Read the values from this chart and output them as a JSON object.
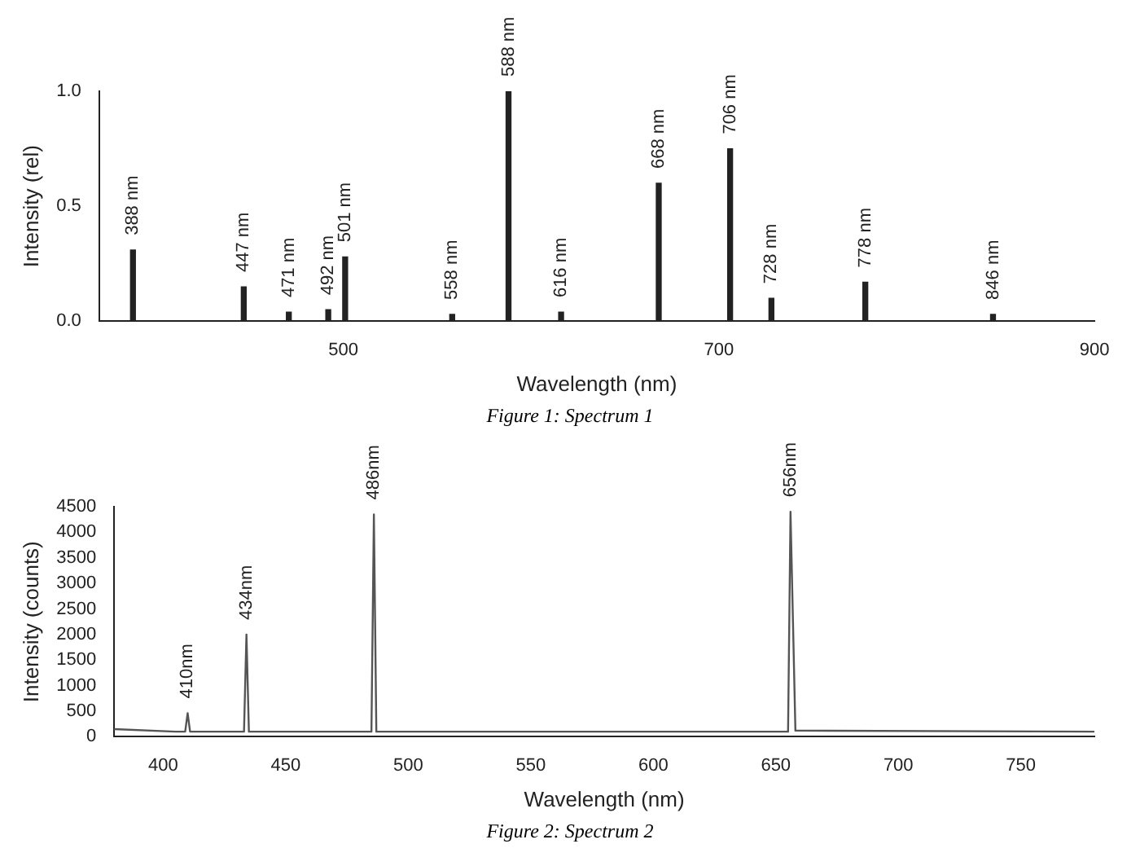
{
  "chart_data": [
    {
      "type": "bar",
      "ylabel": "Intensity (rel)",
      "xlabel": "Wavelength (nm)",
      "x": [
        388,
        447,
        471,
        492,
        501,
        558,
        588,
        616,
        668,
        706,
        728,
        778,
        846
      ],
      "values": [
        0.31,
        0.15,
        0.04,
        0.05,
        0.28,
        0.03,
        1.0,
        0.04,
        0.6,
        0.75,
        0.1,
        0.17,
        0.03
      ],
      "color": "#222222",
      "xlim": [
        370,
        900
      ],
      "xticks": [
        500,
        700,
        900
      ],
      "ylim": [
        0,
        1.0
      ],
      "yticks": [
        {
          "value": 0,
          "label": "0.0"
        },
        0.5,
        {
          "value": 1,
          "label": "1.0"
        }
      ],
      "grid": false,
      "annotations": [
        {
          "text": "388 nm",
          "x": 388,
          "y": 0.31
        },
        {
          "text": "447 nm",
          "x": 447,
          "y": 0.15
        },
        {
          "text": "471 nm",
          "x": 471,
          "y": 0.04
        },
        {
          "text": "492 nm",
          "x": 492,
          "y": 0.05
        },
        {
          "text": "501 nm",
          "x": 501,
          "y": 0.28
        },
        {
          "text": "558 nm",
          "x": 558,
          "y": 0.03
        },
        {
          "text": "588 nm",
          "x": 588,
          "y": 1.0
        },
        {
          "text": "616 nm",
          "x": 616,
          "y": 0.04
        },
        {
          "text": "668 nm",
          "x": 668,
          "y": 0.6
        },
        {
          "text": "706 nm",
          "x": 706,
          "y": 0.75
        },
        {
          "text": "728 nm",
          "x": 728,
          "y": 0.1
        },
        {
          "text": "778 nm",
          "x": 778,
          "y": 0.17
        },
        {
          "text": "846 nm",
          "x": 846,
          "y": 0.03
        },
        "Figure 1: Spectrum 1"
      ]
    },
    {
      "type": "line",
      "ylabel": "Intensity (counts)",
      "xlabel": "Wavelength (nm)",
      "x": [
        380,
        405,
        409,
        410,
        411,
        433,
        434,
        435,
        485,
        486,
        487,
        655,
        656,
        658,
        780
      ],
      "values": [
        150,
        100,
        100,
        460,
        100,
        100,
        2000,
        100,
        100,
        4350,
        100,
        100,
        4400,
        120,
        100
      ],
      "color": "#555555",
      "marker": "none",
      "line_style": "solid",
      "xlim": [
        380,
        780
      ],
      "xticks": [
        400,
        450,
        500,
        550,
        600,
        650,
        700,
        750
      ],
      "ylim": [
        0,
        4500
      ],
      "yticks": [
        0,
        500,
        1000,
        1500,
        2000,
        2500,
        3000,
        3500,
        4000,
        4500
      ],
      "grid": false,
      "annotations": [
        {
          "text": "410nm",
          "x": 410,
          "y": 460
        },
        {
          "text": "434nm",
          "x": 434,
          "y": 2000
        },
        {
          "text": "486nm",
          "x": 486,
          "y": 4350
        },
        {
          "text": "656nm",
          "x": 656,
          "y": 4400
        },
        "Figure 2: Spectrum 2"
      ]
    }
  ]
}
